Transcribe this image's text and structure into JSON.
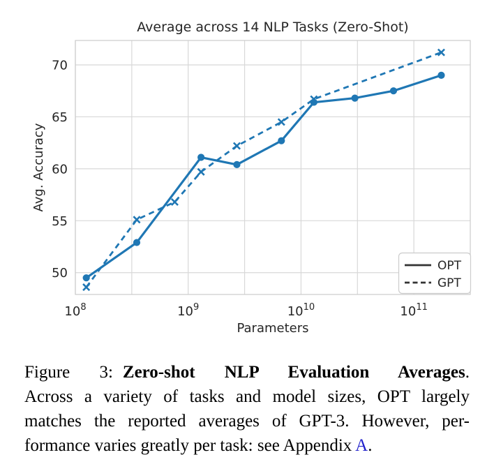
{
  "chart_data": {
    "type": "line",
    "title": "Average across 14 NLP Tasks (Zero-Shot)",
    "xlabel": "Parameters",
    "ylabel": "Avg. Accuracy",
    "x_scale": "log",
    "xlim": [
      100000000.0,
      316200000000.0
    ],
    "ylim": [
      47.9,
      72.35
    ],
    "grid": true,
    "grid_step_decades": 0.5,
    "y_ticks": [
      50,
      55,
      60,
      65,
      70
    ],
    "x_ticks": [
      {
        "value": 100000000.0,
        "base": "10",
        "exp": "8"
      },
      {
        "value": 1000000000.0,
        "base": "10",
        "exp": "9"
      },
      {
        "value": 10000000000.0,
        "base": "10",
        "exp": "10"
      },
      {
        "value": 100000000000.0,
        "base": "10",
        "exp": "11"
      }
    ],
    "legend_position": "lower right",
    "series": [
      {
        "name": "OPT",
        "line": "solid",
        "marker": "circle",
        "x": [
          125000000.0,
          350000000.0,
          1300000000.0,
          2700000000.0,
          6700000000.0,
          13000000000.0,
          30000000000.0,
          66000000000.0,
          175000000000.0
        ],
        "y": [
          49.5,
          52.9,
          61.1,
          60.4,
          62.7,
          66.4,
          66.8,
          67.5,
          69.0
        ]
      },
      {
        "name": "GPT",
        "line": "dashed",
        "marker": "x",
        "x": [
          125000000.0,
          350000000.0,
          760000000.0,
          1300000000.0,
          2700000000.0,
          6700000000.0,
          13000000000.0,
          175000000000.0
        ],
        "y": [
          48.6,
          55.1,
          56.8,
          59.7,
          62.2,
          64.5,
          66.7,
          71.2
        ]
      }
    ]
  },
  "caption": {
    "figure_label": "Figure 3:",
    "bold_title": "Zero-shot NLP Evaluation Averages",
    "bold_suffix": ".",
    "line2": "Across a variety of tasks and model sizes, OPT largely",
    "line3": "matches the reported averages of GPT-3. However, per-",
    "line4_text": "formance varies greatly per task: see Appendix ",
    "line4_link": "A",
    "line4_end": "."
  },
  "colors": {
    "series_line": "#1f77b4",
    "grid": "#d8d8d8",
    "spine": "#cccccc",
    "legend_line": "#333333",
    "legend_border": "#cccccc",
    "chart_text": "#262626",
    "caption_link": "#2222cc"
  }
}
